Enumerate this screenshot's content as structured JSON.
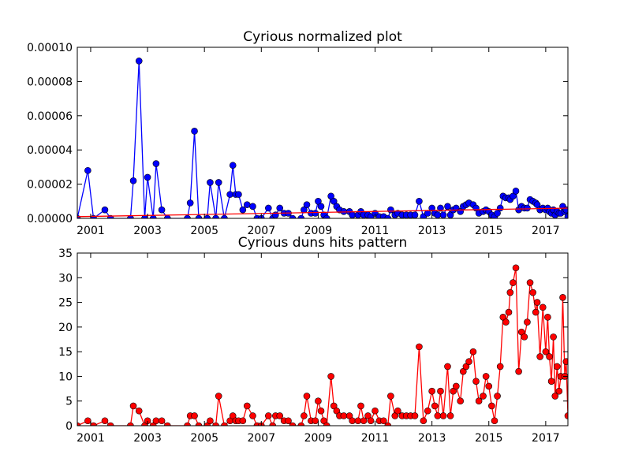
{
  "chart_data": [
    {
      "type": "line",
      "title": "Cyrious normalized plot",
      "x": [
        2000.53,
        2000.9,
        2001.1,
        2001.5,
        2001.7,
        2002.4,
        2002.5,
        2002.7,
        2002.9,
        2003.0,
        2003.2,
        2003.3,
        2003.5,
        2003.7,
        2004.4,
        2004.5,
        2004.65,
        2004.8,
        2005.1,
        2005.2,
        2005.4,
        2005.5,
        2005.7,
        2005.9,
        2006.0,
        2006.1,
        2006.2,
        2006.35,
        2006.5,
        2006.7,
        2006.85,
        2007.0,
        2007.25,
        2007.4,
        2007.5,
        2007.65,
        2007.8,
        2007.95,
        2008.1,
        2008.4,
        2008.5,
        2008.6,
        2008.75,
        2008.9,
        2009.0,
        2009.1,
        2009.2,
        2009.3,
        2009.45,
        2009.55,
        2009.65,
        2009.75,
        2009.9,
        2010.1,
        2010.2,
        2010.4,
        2010.5,
        2010.6,
        2010.75,
        2010.85,
        2011.0,
        2011.15,
        2011.3,
        2011.45,
        2011.55,
        2011.7,
        2011.8,
        2011.95,
        2012.1,
        2012.25,
        2012.4,
        2012.55,
        2012.7,
        2012.85,
        2013.0,
        2013.1,
        2013.2,
        2013.3,
        2013.4,
        2013.55,
        2013.65,
        2013.75,
        2013.85,
        2014.0,
        2014.1,
        2014.2,
        2014.3,
        2014.45,
        2014.55,
        2014.65,
        2014.8,
        2014.9,
        2015.0,
        2015.1,
        2015.2,
        2015.3,
        2015.4,
        2015.5,
        2015.6,
        2015.7,
        2015.75,
        2015.85,
        2015.95,
        2016.05,
        2016.15,
        2016.25,
        2016.35,
        2016.45,
        2016.55,
        2016.65,
        2016.7,
        2016.8,
        2016.9,
        2017.0,
        2017.07,
        2017.13,
        2017.2,
        2017.27,
        2017.33,
        2017.4,
        2017.47,
        2017.53,
        2017.6,
        2017.67,
        2017.72,
        2017.78
      ],
      "series": [
        {
          "color": "#0000ff",
          "values": [
            0,
            2.8e-05,
            0,
            5e-06,
            0,
            0,
            2.2e-05,
            9.2e-05,
            0,
            2.4e-05,
            0,
            3.2e-05,
            5e-06,
            0,
            0,
            9e-06,
            5.1e-05,
            0,
            0,
            2.1e-05,
            0,
            2.1e-05,
            0,
            1.4e-05,
            3.1e-05,
            1.4e-05,
            1.4e-05,
            5e-06,
            8e-06,
            7e-06,
            0,
            0,
            6e-06,
            0,
            2e-06,
            6e-06,
            3e-06,
            3e-06,
            0,
            0,
            5e-06,
            8e-06,
            3e-06,
            3e-06,
            1e-05,
            7e-06,
            2e-06,
            0,
            1.3e-05,
            1e-05,
            7e-06,
            5e-06,
            4e-06,
            4e-06,
            2e-06,
            2e-06,
            4e-06,
            2e-06,
            2e-06,
            1e-06,
            3e-06,
            1e-06,
            1e-06,
            0,
            5e-06,
            2e-06,
            3e-06,
            2e-06,
            2e-06,
            2e-06,
            2e-06,
            1e-05,
            1e-06,
            3e-06,
            6e-06,
            3e-06,
            2e-06,
            6e-06,
            2e-06,
            7e-06,
            2e-06,
            5e-06,
            6e-06,
            4e-06,
            7e-06,
            8e-06,
            9e-06,
            8e-06,
            6e-06,
            3e-06,
            4e-06,
            5e-06,
            4e-06,
            2e-06,
            1e-06,
            3e-06,
            6e-06,
            1.3e-05,
            1.2e-05,
            1.2e-05,
            1.1e-05,
            1.3e-05,
            1.6e-05,
            5e-06,
            7e-06,
            6e-06,
            6e-06,
            1.1e-05,
            1e-05,
            9e-06,
            8e-06,
            5e-06,
            6e-06,
            5e-06,
            6e-06,
            4e-06,
            3e-06,
            5e-06,
            2e-06,
            4e-06,
            3e-06,
            3e-06,
            7e-06,
            4e-06,
            5e-06,
            1e-06
          ]
        }
      ],
      "trend": {
        "color": "#ff0000",
        "x": [
          2000.53,
          2017.78
        ],
        "values": [
          1e-06,
          6e-06
        ]
      },
      "xlim": [
        2000.53,
        2017.78
      ],
      "xticks": [
        2001,
        2003,
        2005,
        2007,
        2009,
        2011,
        2013,
        2015,
        2017
      ],
      "ylim": [
        0,
        0.0001
      ],
      "yticks": [
        {
          "value": 0,
          "label": "0.00000"
        },
        {
          "value": 2e-05,
          "label": "0.00002"
        },
        {
          "value": 4e-05,
          "label": "0.00004"
        },
        {
          "value": 6e-05,
          "label": "0.00006"
        },
        {
          "value": 8e-05,
          "label": "0.00008"
        },
        {
          "value": 0.0001,
          "label": "0.00010"
        }
      ]
    },
    {
      "type": "line",
      "title": "Cyrious duns hits pattern",
      "x": [
        2000.53,
        2000.9,
        2001.1,
        2001.5,
        2001.7,
        2002.4,
        2002.5,
        2002.7,
        2002.9,
        2003.0,
        2003.2,
        2003.3,
        2003.5,
        2003.7,
        2004.4,
        2004.5,
        2004.65,
        2004.8,
        2005.1,
        2005.2,
        2005.4,
        2005.5,
        2005.7,
        2005.9,
        2006.0,
        2006.1,
        2006.2,
        2006.35,
        2006.5,
        2006.7,
        2006.85,
        2007.0,
        2007.25,
        2007.4,
        2007.5,
        2007.65,
        2007.8,
        2007.95,
        2008.1,
        2008.4,
        2008.5,
        2008.6,
        2008.75,
        2008.9,
        2009.0,
        2009.1,
        2009.2,
        2009.3,
        2009.45,
        2009.55,
        2009.65,
        2009.75,
        2009.9,
        2010.1,
        2010.2,
        2010.4,
        2010.5,
        2010.6,
        2010.75,
        2010.85,
        2011.0,
        2011.15,
        2011.3,
        2011.45,
        2011.55,
        2011.7,
        2011.8,
        2011.95,
        2012.1,
        2012.25,
        2012.4,
        2012.55,
        2012.7,
        2012.85,
        2013.0,
        2013.1,
        2013.2,
        2013.3,
        2013.4,
        2013.55,
        2013.65,
        2013.75,
        2013.85,
        2014.0,
        2014.1,
        2014.2,
        2014.3,
        2014.45,
        2014.55,
        2014.65,
        2014.8,
        2014.9,
        2015.0,
        2015.1,
        2015.2,
        2015.3,
        2015.4,
        2015.5,
        2015.6,
        2015.7,
        2015.75,
        2015.85,
        2015.95,
        2016.05,
        2016.15,
        2016.25,
        2016.35,
        2016.45,
        2016.55,
        2016.65,
        2016.7,
        2016.8,
        2016.9,
        2017.0,
        2017.07,
        2017.13,
        2017.2,
        2017.27,
        2017.33,
        2017.4,
        2017.47,
        2017.53,
        2017.6,
        2017.67,
        2017.72,
        2017.78
      ],
      "series": [
        {
          "color": "#ff0000",
          "values": [
            0,
            1,
            0,
            1,
            0,
            0,
            4,
            3,
            0,
            1,
            0,
            1,
            1,
            0,
            0,
            2,
            2,
            0,
            0,
            1,
            0,
            6,
            0,
            1,
            2,
            1,
            1,
            1,
            4,
            2,
            0,
            0,
            2,
            0,
            2,
            2,
            1,
            1,
            0,
            0,
            2,
            6,
            1,
            1,
            5,
            3,
            1,
            0,
            10,
            4,
            3,
            2,
            2,
            2,
            1,
            1,
            4,
            1,
            2,
            1,
            3,
            1,
            1,
            0,
            6,
            2,
            3,
            2,
            2,
            2,
            2,
            16,
            1,
            3,
            7,
            4,
            2,
            7,
            2,
            12,
            2,
            7,
            8,
            5,
            11,
            12,
            13,
            15,
            9,
            5,
            6,
            10,
            8,
            4,
            1,
            6,
            12,
            22,
            21,
            23,
            27,
            29,
            32,
            11,
            19,
            18,
            21,
            29,
            27,
            23,
            25,
            14,
            24,
            15,
            22,
            14,
            9,
            18,
            6,
            12,
            7,
            10,
            26,
            10,
            13,
            2
          ]
        }
      ],
      "xlim": [
        2000.53,
        2017.78
      ],
      "xticks": [
        2001,
        2003,
        2005,
        2007,
        2009,
        2011,
        2013,
        2015,
        2017
      ],
      "ylim": [
        0,
        35
      ],
      "yticks": [
        0,
        5,
        10,
        15,
        20,
        25,
        30,
        35
      ]
    }
  ]
}
